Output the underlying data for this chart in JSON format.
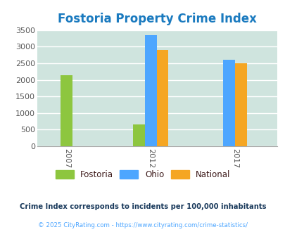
{
  "title": "Fostoria Property Crime Index",
  "years": [
    "2007",
    "2012",
    "2017"
  ],
  "categories": [
    "Fostoria",
    "Ohio",
    "National"
  ],
  "values": [
    [
      2150,
      0,
      0
    ],
    [
      650,
      3350,
      2900
    ],
    [
      0,
      2600,
      2500
    ]
  ],
  "colors": {
    "Fostoria": "#8dc63f",
    "Ohio": "#4da6ff",
    "National": "#f5a623"
  },
  "ylim": [
    0,
    3500
  ],
  "yticks": [
    0,
    500,
    1000,
    1500,
    2000,
    2500,
    3000,
    3500
  ],
  "background_color": "#cfe4de",
  "title_color": "#1a7abf",
  "title_fontsize": 12,
  "footnote1": "Crime Index corresponds to incidents per 100,000 inhabitants",
  "footnote2": "© 2025 CityRating.com - https://www.cityrating.com/crime-statistics/",
  "footnote1_color": "#1a3a5c",
  "footnote2_color": "#4da6ff",
  "legend_label_color": "#3d1a1a"
}
